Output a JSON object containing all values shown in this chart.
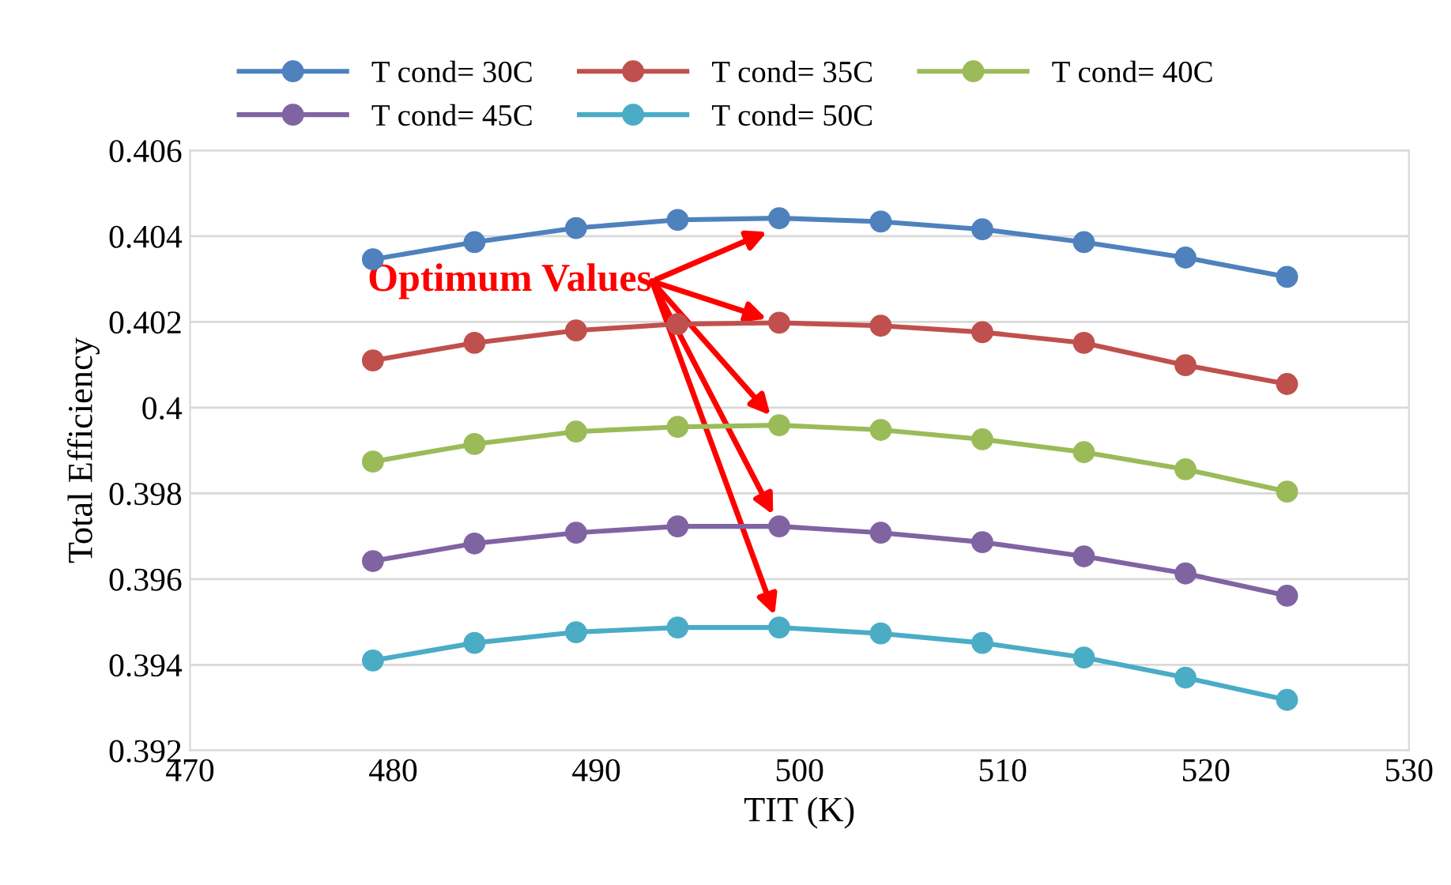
{
  "chart_data": {
    "type": "line",
    "xlabel": "TIT (K)",
    "ylabel": "Total Efficiency",
    "x": [
      479,
      484,
      489,
      494,
      499,
      504,
      509,
      514,
      519,
      524
    ],
    "series": [
      {
        "name": "T cond= 30C",
        "color": "#4f81bd",
        "values": [
          0.40346,
          0.40386,
          0.40419,
          0.40438,
          0.40442,
          0.40434,
          0.40416,
          0.40386,
          0.4035,
          0.40305
        ]
      },
      {
        "name": "T cond= 35C",
        "color": "#c0504d",
        "values": [
          0.4011,
          0.40151,
          0.4018,
          0.40195,
          0.40198,
          0.40191,
          0.40176,
          0.40151,
          0.40099,
          0.40055
        ]
      },
      {
        "name": "T cond= 40C",
        "color": "#9bbb59",
        "values": [
          0.39874,
          0.39915,
          0.39944,
          0.39955,
          0.39959,
          0.39948,
          0.39926,
          0.39896,
          0.39856,
          0.39804
        ]
      },
      {
        "name": "T cond= 45C",
        "color": "#8064a2",
        "values": [
          0.39642,
          0.39683,
          0.39708,
          0.39723,
          0.39723,
          0.39708,
          0.39686,
          0.39653,
          0.39613,
          0.39561
        ]
      },
      {
        "name": "T cond= 50C",
        "color": "#4bacc6",
        "values": [
          0.3941,
          0.39451,
          0.39476,
          0.39487,
          0.39487,
          0.39473,
          0.39451,
          0.39417,
          0.3937,
          0.39318
        ]
      }
    ],
    "xlim": [
      470,
      530
    ],
    "xticks": [
      470,
      480,
      490,
      500,
      510,
      520,
      530
    ],
    "ylim": [
      0.392,
      0.406
    ],
    "yticks": [
      0.392,
      0.394,
      0.396,
      0.398,
      0.4,
      0.402,
      0.404,
      0.406
    ],
    "grid": "y",
    "legend": "top",
    "marker": "circle",
    "line_style": "solid",
    "annotations": [
      {
        "text": "Optimum Values",
        "x": 498.4,
        "y": 0.4041
      }
    ]
  }
}
